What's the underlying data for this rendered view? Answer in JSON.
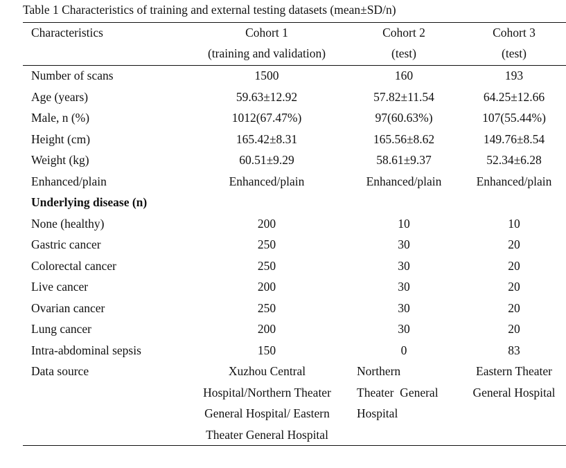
{
  "caption": "Table 1 Characteristics of training and external testing datasets (mean±SD/n)",
  "header": {
    "characteristics": "Characteristics",
    "cohort1": "Cohort 1",
    "cohort1_sub": "(training and validation)",
    "cohort2": "Cohort 2",
    "cohort2_sub": "(test)",
    "cohort3": "Cohort 3",
    "cohort3_sub": "(test)"
  },
  "rows": [
    {
      "label": "Number of scans",
      "c1": "1500",
      "c2": "160",
      "c3": "193"
    },
    {
      "label": "Age (years)",
      "c1": "59.63±12.92",
      "c2": "57.82±11.54",
      "c3": "64.25±12.66"
    },
    {
      "label": "Male, n (%)",
      "c1": "1012(67.47%)",
      "c2": "97(60.63%)",
      "c3": "107(55.44%)"
    },
    {
      "label": "Height (cm)",
      "c1": "165.42±8.31",
      "c2": "165.56±8.62",
      "c3": "149.76±8.54"
    },
    {
      "label": "Weight (kg)",
      "c1": "60.51±9.29",
      "c2": "58.61±9.37",
      "c3": "52.34±6.28"
    },
    {
      "label": "Enhanced/plain",
      "c1": "Enhanced/plain",
      "c2": "Enhanced/plain",
      "c3": "Enhanced/plain"
    }
  ],
  "section": "Underlying disease (n)",
  "disease_rows": [
    {
      "label": "None (healthy)",
      "c1": "200",
      "c2": "10",
      "c3": "10"
    },
    {
      "label": "Gastric cancer",
      "c1": "250",
      "c2": "30",
      "c3": "20"
    },
    {
      "label": "Colorectal cancer",
      "c1": "250",
      "c2": "30",
      "c3": "20"
    },
    {
      "label": "Live cancer",
      "c1": "200",
      "c2": "30",
      "c3": "20"
    },
    {
      "label": "Ovarian cancer",
      "c1": "250",
      "c2": "30",
      "c3": "20"
    },
    {
      "label": "Lung cancer",
      "c1": "200",
      "c2": "30",
      "c3": "20"
    },
    {
      "label": "Intra-abdominal sepsis",
      "c1": "150",
      "c2": "0",
      "c3": "83"
    }
  ],
  "data_source": {
    "label": "Data source",
    "c1_lines": [
      "Xuzhou Central",
      "Hospital/Northern Theater",
      "General Hospital/ Eastern",
      "Theater General Hospital"
    ],
    "c2_lines": [
      "Northern",
      "Theater  General",
      "Hospital"
    ],
    "c3_lines": [
      "Eastern Theater",
      "General Hospital"
    ]
  }
}
